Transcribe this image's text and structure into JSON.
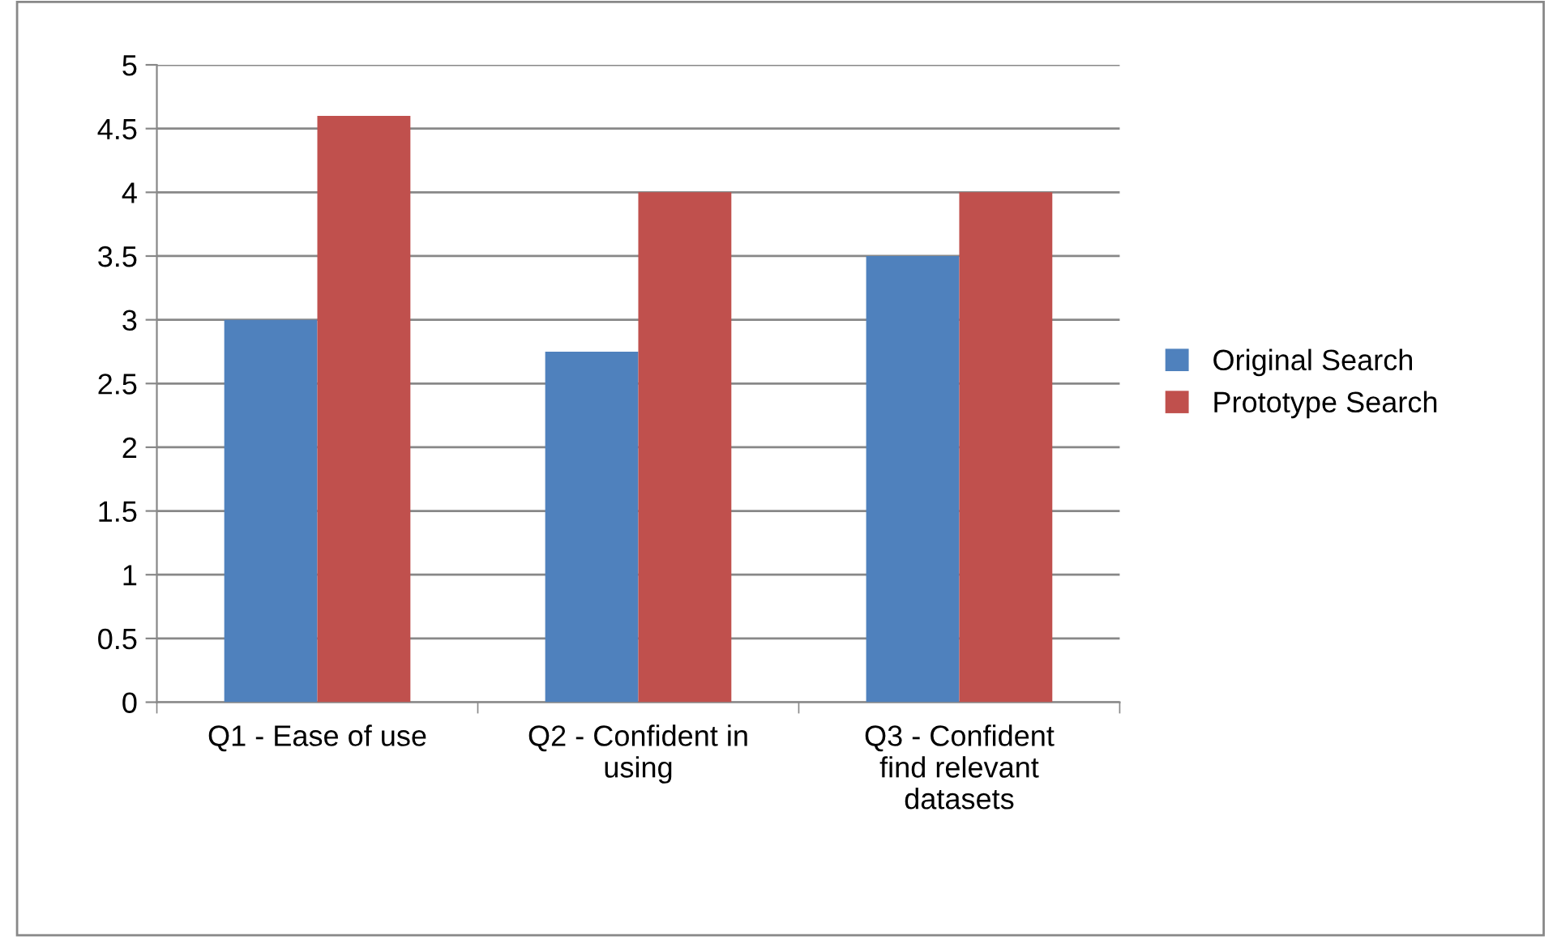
{
  "chart_data": {
    "type": "bar",
    "categories": [
      "Q1 - Ease of use",
      "Q2 - Confident in\nusing",
      "Q3 - Confident\nfind relevant\ndatasets"
    ],
    "series": [
      {
        "name": "Original Search",
        "color": "#4f81bd",
        "values": [
          3,
          2.75,
          3.5
        ]
      },
      {
        "name": "Prototype Search",
        "color": "#c0504d",
        "values": [
          4.6,
          4,
          4
        ]
      }
    ],
    "ylim": [
      0,
      5
    ],
    "yticks": [
      0,
      0.5,
      1,
      1.5,
      2,
      2.5,
      3,
      3.5,
      4,
      4.5,
      5
    ],
    "grid": "y",
    "legend": "right"
  }
}
